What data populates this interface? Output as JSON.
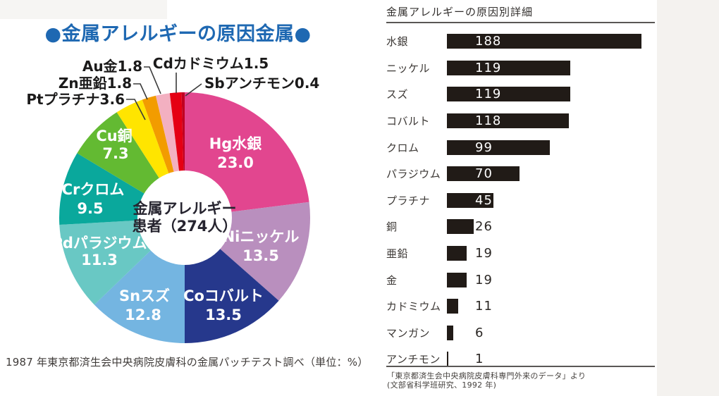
{
  "chart_data": [
    {
      "type": "pie",
      "donut": true,
      "title": "●金属アレルギーの原因金属●",
      "title_color": "#1e68b2",
      "center_label_lines": [
        "金属アレルギー",
        "患者（274人）"
      ],
      "unit": "%",
      "source": "1987 年東京都済生会中央病院皮膚科の金属パッチテスト調べ（単位：%）",
      "series": [
        {
          "label": "Hg水銀",
          "value": 23.0,
          "color": "#e2468f",
          "display": "in"
        },
        {
          "label": "Niニッケル",
          "value": 13.5,
          "color": "#b98fbe",
          "display": "in"
        },
        {
          "label": "Coコバルト",
          "value": 13.5,
          "color": "#26388c",
          "display": "in"
        },
        {
          "label": "Snスズ",
          "value": 12.8,
          "color": "#74b5e1",
          "display": "in"
        },
        {
          "label": "Pdパラジウム",
          "value": 11.3,
          "color": "#69c8c4",
          "display": "in"
        },
        {
          "label": "Crクロム",
          "value": 9.5,
          "color": "#0aa89c",
          "display": "in"
        },
        {
          "label": "Cu銅",
          "value": 7.3,
          "color": "#63ba32",
          "display": "in"
        },
        {
          "label": "Ptプラチナ",
          "value": 3.6,
          "color": "#ffe500",
          "display": "callout"
        },
        {
          "label": "Zn亜鉛",
          "value": 1.8,
          "color": "#f29c00",
          "display": "callout"
        },
        {
          "label": "Au金",
          "value": 1.8,
          "color": "#f3b0c1",
          "display": "callout"
        },
        {
          "label": "Cdカドミウム",
          "value": 1.5,
          "color": "#e50013",
          "display": "callout"
        },
        {
          "label": "Sbアンチモン",
          "value": 0.4,
          "color": "#c00021",
          "display": "callout"
        }
      ]
    },
    {
      "type": "bar",
      "horizontal": true,
      "title": "金属アレルギーの原因別詳細",
      "bar_color": "#211b17",
      "categories": [
        "水銀",
        "ニッケル",
        "スズ",
        "コバルト",
        "クロム",
        "パラジウム",
        "プラチナ",
        "銅",
        "亜鉛",
        "金",
        "カドミウム",
        "マンガン",
        "アンチモン"
      ],
      "values": [
        188,
        119,
        119,
        118,
        99,
        70,
        45,
        26,
        19,
        19,
        11,
        6,
        1
      ],
      "source_line1": "「東京都済生会中央病院皮膚科専門外来のデータ」より",
      "source_line2": "(文部省科学班研究、1992 年)"
    }
  ]
}
